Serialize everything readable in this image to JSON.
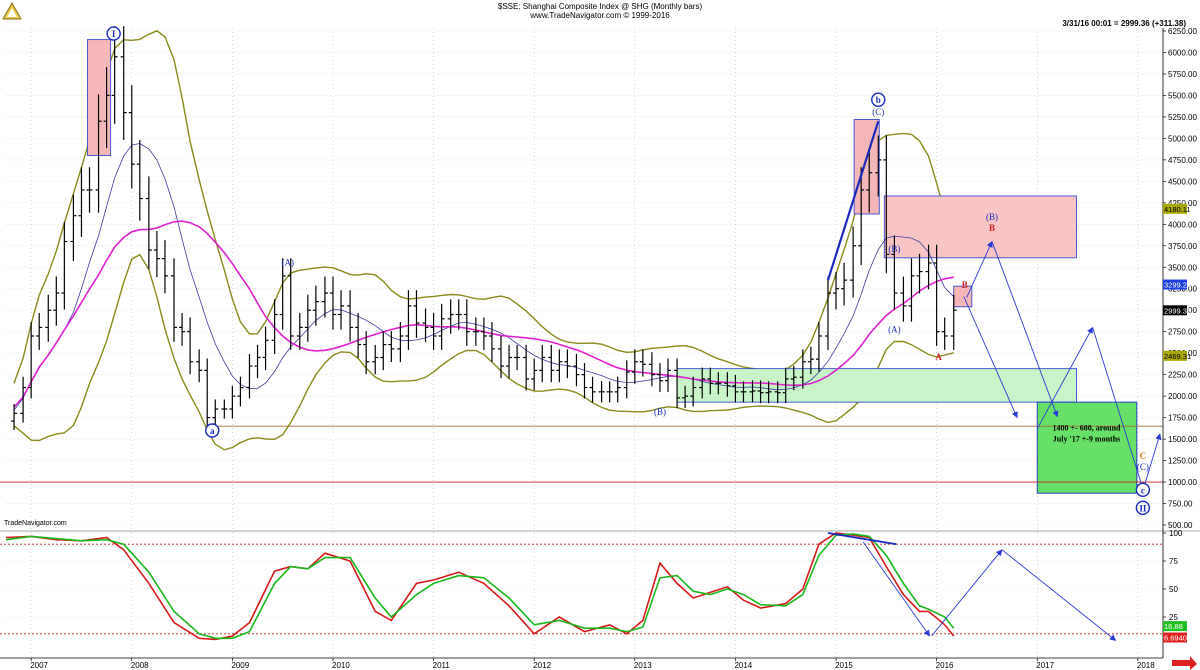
{
  "header": {
    "title": "$SSE: Shanghai Composite Index @ SHG  (Monthly bars)",
    "subtitle": "www.TradeNavigator.com © 1999-2016",
    "info": "3/31/16 00:01 = 2999.36 (+311.38)",
    "tn_label": "TradeNavigator.com"
  },
  "chart_data": [
    {
      "type": "line",
      "panel": "price",
      "x_labels": [
        "2007",
        "2008",
        "2009",
        "2010",
        "2011",
        "2012",
        "2013",
        "2014",
        "2015",
        "2016",
        "2017",
        "2018"
      ],
      "y_ticks": [
        500,
        750,
        1000,
        1250,
        1500,
        1750,
        2000,
        2250,
        2500,
        2750,
        3000,
        3250,
        3500,
        3750,
        4000,
        4250,
        4500,
        4750,
        5000,
        5250,
        5500,
        5750,
        6000,
        6250
      ],
      "y_tick_labels": [
        "500.00",
        "750.00",
        "1000.00",
        "1250.00",
        "1500.00",
        "1750.00",
        "2000.00",
        "2250.00",
        "2500.00",
        "2750.00",
        "3000.00",
        "3250.00",
        "3500.00",
        "3750.00",
        "4000.00",
        "4250.00",
        "4500.00",
        "4750.00",
        "5000.00",
        "5250.00",
        "5500.00",
        "5750.00",
        "6000.00",
        "6250.00"
      ],
      "ylim": [
        500,
        6400
      ],
      "xlim": [
        2006.75,
        2018.25
      ],
      "closes": {
        "x": [
          2006.83,
          2006.92,
          2007.0,
          2007.08,
          2007.17,
          2007.25,
          2007.33,
          2007.42,
          2007.5,
          2007.58,
          2007.67,
          2007.75,
          2007.83,
          2007.92,
          2008.0,
          2008.08,
          2008.17,
          2008.25,
          2008.33,
          2008.42,
          2008.5,
          2008.58,
          2008.67,
          2008.75,
          2008.83,
          2008.92,
          2009.0,
          2009.08,
          2009.17,
          2009.25,
          2009.33,
          2009.42,
          2009.5,
          2009.58,
          2009.67,
          2009.75,
          2009.83,
          2009.92,
          2010.0,
          2010.08,
          2010.17,
          2010.25,
          2010.33,
          2010.42,
          2010.5,
          2010.58,
          2010.67,
          2010.75,
          2010.83,
          2010.92,
          2011.0,
          2011.08,
          2011.17,
          2011.25,
          2011.33,
          2011.42,
          2011.5,
          2011.58,
          2011.67,
          2011.75,
          2011.83,
          2011.92,
          2012.0,
          2012.08,
          2012.17,
          2012.25,
          2012.33,
          2012.42,
          2012.5,
          2012.58,
          2012.67,
          2012.75,
          2012.83,
          2012.92,
          2013.0,
          2013.08,
          2013.17,
          2013.25,
          2013.33,
          2013.42,
          2013.5,
          2013.58,
          2013.67,
          2013.75,
          2013.83,
          2013.92,
          2014.0,
          2014.08,
          2014.17,
          2014.25,
          2014.33,
          2014.42,
          2014.5,
          2014.58,
          2014.67,
          2014.75,
          2014.83,
          2014.92,
          2015.0,
          2015.08,
          2015.17,
          2015.25,
          2015.33,
          2015.42,
          2015.5,
          2015.58,
          2015.67,
          2015.75,
          2015.83,
          2015.92,
          2016.0,
          2016.08,
          2016.17
        ],
        "y": [
          1800,
          2100,
          2700,
          2800,
          3000,
          3200,
          3800,
          4100,
          4400,
          4400,
          5200,
          5500,
          5950,
          5300,
          4700,
          4300,
          3700,
          3600,
          3400,
          2800,
          2750,
          2400,
          2300,
          1750,
          1850,
          1850,
          2000,
          2100,
          2350,
          2450,
          2650,
          2950,
          3400,
          2700,
          2800,
          3000,
          3100,
          3200,
          2950,
          3050,
          2800,
          2600,
          2400,
          2450,
          2600,
          2550,
          2700,
          3050,
          2850,
          2800,
          2700,
          2900,
          2950,
          2950,
          2750,
          2750,
          2700,
          2550,
          2350,
          2450,
          2450,
          2200,
          2300,
          2450,
          2300,
          2400,
          2350,
          2250,
          2100,
          2050,
          2050,
          2050,
          2100,
          2280,
          2400,
          2370,
          2250,
          2180,
          2300,
          1980,
          2000,
          2100,
          2200,
          2150,
          2150,
          2120,
          2050,
          2050,
          2060,
          2040,
          2050,
          2040,
          2200,
          2220,
          2400,
          2430,
          2700,
          3200,
          3250,
          3350,
          3750,
          4400,
          4600,
          4750,
          3650,
          3200,
          3050,
          3400,
          3450,
          3550,
          2750,
          2700,
          3000
        ]
      },
      "annotations": {
        "wave_I": "I",
        "wave_a": "a",
        "wave_A_2009": "(A)",
        "wave_B_2013": "(B)",
        "wave_b": "b",
        "wave_C_2015": "(C)",
        "wave_B_2015": "(B)",
        "wave_A_2015": "(A)",
        "wave_A_red": "A",
        "wave_B_red": "B",
        "wave_B_target": "(B)",
        "wave_B_target_red": "B",
        "target_box_line1": "1400 +- 600, around",
        "target_box_line2": "July '17 +-9 months",
        "wave_C_orange": "C",
        "wave_C_cyan": "(C)",
        "wave_c": "c",
        "wave_II": "II"
      },
      "price_tags": [
        "4180.11",
        "3299.24",
        "2999.36",
        "2469.31"
      ]
    },
    {
      "type": "line",
      "panel": "oscillator",
      "y_ticks": [
        25,
        50,
        75,
        100
      ],
      "y_tick_labels": [
        "25",
        "50",
        "75",
        "100"
      ],
      "ylim": [
        0,
        105
      ],
      "price_tags": [
        "16.88",
        "6.6940"
      ],
      "series": [
        {
          "x": [
            2006.75,
            2007.0,
            2007.25,
            2007.5,
            2007.75,
            2007.92,
            2008.17,
            2008.42,
            2008.67,
            2008.83,
            2009.0,
            2009.17,
            2009.42,
            2009.58,
            2009.75,
            2009.92,
            2010.17,
            2010.42,
            2010.58,
            2010.83,
            2011.0,
            2011.25,
            2011.5,
            2011.75,
            2012.0,
            2012.25,
            2012.5,
            2012.75,
            2012.92,
            2013.08,
            2013.25,
            2013.42,
            2013.58,
            2013.75,
            2013.92,
            2014.08,
            2014.25,
            2014.5,
            2014.67,
            2014.83,
            2015.0,
            2015.17,
            2015.33,
            2015.5,
            2015.67,
            2015.83,
            2015.92,
            2016.08,
            2016.17
          ],
          "y": [
            96,
            97,
            94,
            93,
            96,
            85,
            55,
            20,
            6,
            5,
            8,
            20,
            66,
            70,
            68,
            82,
            75,
            30,
            22,
            55,
            58,
            65,
            55,
            35,
            10,
            25,
            12,
            18,
            10,
            22,
            73,
            55,
            42,
            47,
            52,
            40,
            33,
            37,
            50,
            90,
            100,
            98,
            96,
            70,
            45,
            30,
            30,
            18,
            8
          ]
        },
        {
          "x": [
            2006.75,
            2007.0,
            2007.25,
            2007.5,
            2007.75,
            2007.92,
            2008.17,
            2008.42,
            2008.67,
            2008.83,
            2009.0,
            2009.17,
            2009.42,
            2009.58,
            2009.75,
            2009.92,
            2010.17,
            2010.42,
            2010.58,
            2010.83,
            2011.0,
            2011.25,
            2011.5,
            2011.75,
            2012.0,
            2012.25,
            2012.5,
            2012.75,
            2012.92,
            2013.08,
            2013.25,
            2013.42,
            2013.58,
            2013.75,
            2013.92,
            2014.08,
            2014.25,
            2014.5,
            2014.67,
            2014.83,
            2015.0,
            2015.17,
            2015.33,
            2015.5,
            2015.67,
            2015.83,
            2015.92,
            2016.08,
            2016.17
          ],
          "y": [
            94,
            97,
            95,
            93,
            94,
            90,
            65,
            30,
            10,
            6,
            6,
            12,
            55,
            70,
            68,
            78,
            78,
            42,
            25,
            45,
            55,
            62,
            60,
            42,
            18,
            22,
            15,
            15,
            12,
            16,
            60,
            62,
            48,
            45,
            50,
            45,
            36,
            35,
            45,
            80,
            98,
            99,
            97,
            80,
            55,
            35,
            32,
            25,
            15
          ]
        }
      ]
    }
  ]
}
